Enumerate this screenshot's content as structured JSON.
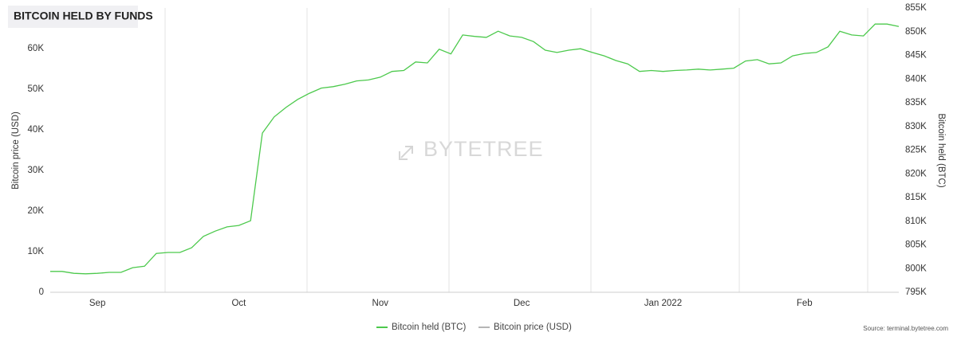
{
  "chart_data": {
    "type": "line",
    "title": "BITCOIN HELD BY FUNDS",
    "watermark": "BYTETREE",
    "source": "Source: terminal.bytetree.com",
    "y_label": "Bitcoin price (USD)",
    "y2_label": "Bitcoin held (BTC)",
    "categories": [
      null,
      null,
      null,
      null,
      "Sep",
      null,
      null,
      null,
      null,
      null,
      null,
      null,
      null,
      null,
      null,
      null,
      "Oct",
      null,
      null,
      null,
      null,
      null,
      null,
      null,
      null,
      null,
      null,
      null,
      "Nov",
      null,
      null,
      null,
      null,
      null,
      null,
      null,
      null,
      null,
      null,
      null,
      "Dec",
      null,
      null,
      null,
      null,
      null,
      null,
      null,
      null,
      null,
      null,
      null,
      "Jan 2022",
      null,
      null,
      null,
      null,
      null,
      null,
      null,
      null,
      null,
      null,
      null,
      "Feb",
      null,
      null,
      null,
      null,
      null,
      null,
      null,
      null
    ],
    "series": [
      {
        "name": "Bitcoin held (BTC)",
        "color": "#4cc94c",
        "axis": "y2",
        "values": [
          799400,
          799400,
          799000,
          798900,
          799000,
          799200,
          799200,
          800200,
          800500,
          803200,
          803400,
          803400,
          804400,
          806800,
          807900,
          808800,
          809100,
          810100,
          828600,
          832000,
          834000,
          835700,
          837000,
          838100,
          838400,
          838900,
          839600,
          839800,
          840400,
          841600,
          841800,
          843600,
          843400,
          846300,
          845300,
          849300,
          849000,
          848800,
          850100,
          849100,
          848800,
          847900,
          846100,
          845600,
          846100,
          846400,
          845600,
          844900,
          843900,
          843200,
          841600,
          841800,
          841600,
          841800,
          841900,
          842100,
          841900,
          842100,
          842300,
          843800,
          844100,
          843200,
          843400,
          844900,
          845400,
          845600,
          846800,
          850100,
          849300,
          849100,
          851600,
          851600,
          851100
        ]
      },
      {
        "name": "Bitcoin price (USD)",
        "color": "#b5b5b5",
        "values": [
          null,
          null,
          null,
          null,
          null,
          null,
          null,
          null,
          null,
          null,
          null,
          null,
          null,
          null,
          null,
          null,
          null,
          null,
          null,
          null,
          null,
          null,
          null,
          null,
          null,
          null,
          null,
          null,
          null,
          null,
          null,
          null,
          null,
          null,
          null,
          null,
          null,
          null,
          null,
          null,
          null,
          null,
          null,
          null,
          null,
          null,
          null,
          null,
          null,
          null,
          null,
          null,
          null,
          null,
          null,
          null,
          null,
          null,
          null,
          null,
          null,
          null,
          null,
          null,
          null,
          null,
          null,
          null,
          null,
          null,
          null,
          null,
          null
        ]
      }
    ],
    "ylim": [
      0,
      70000
    ],
    "yticks": [
      0,
      {
        "value": 10000,
        "label": "10K"
      },
      {
        "value": 20000,
        "label": "20K"
      },
      {
        "value": 30000,
        "label": "30K"
      },
      {
        "value": 40000,
        "label": "40K"
      },
      {
        "value": 50000,
        "label": "50K"
      },
      {
        "value": 60000,
        "label": "60K"
      }
    ],
    "y2lim": [
      795000,
      855000
    ],
    "y2ticks": [
      {
        "value": 795000,
        "label": "795K"
      },
      {
        "value": 800000,
        "label": "800K"
      },
      {
        "value": 805000,
        "label": "805K"
      },
      {
        "value": 810000,
        "label": "810K"
      },
      {
        "value": 815000,
        "label": "815K"
      },
      {
        "value": 820000,
        "label": "820K"
      },
      {
        "value": 825000,
        "label": "825K"
      },
      {
        "value": 830000,
        "label": "830K"
      },
      {
        "value": 835000,
        "label": "835K"
      },
      {
        "value": 840000,
        "label": "840K"
      },
      {
        "value": 845000,
        "label": "845K"
      },
      {
        "value": 850000,
        "label": "850K"
      },
      {
        "value": 855000,
        "label": "855K"
      }
    ]
  }
}
